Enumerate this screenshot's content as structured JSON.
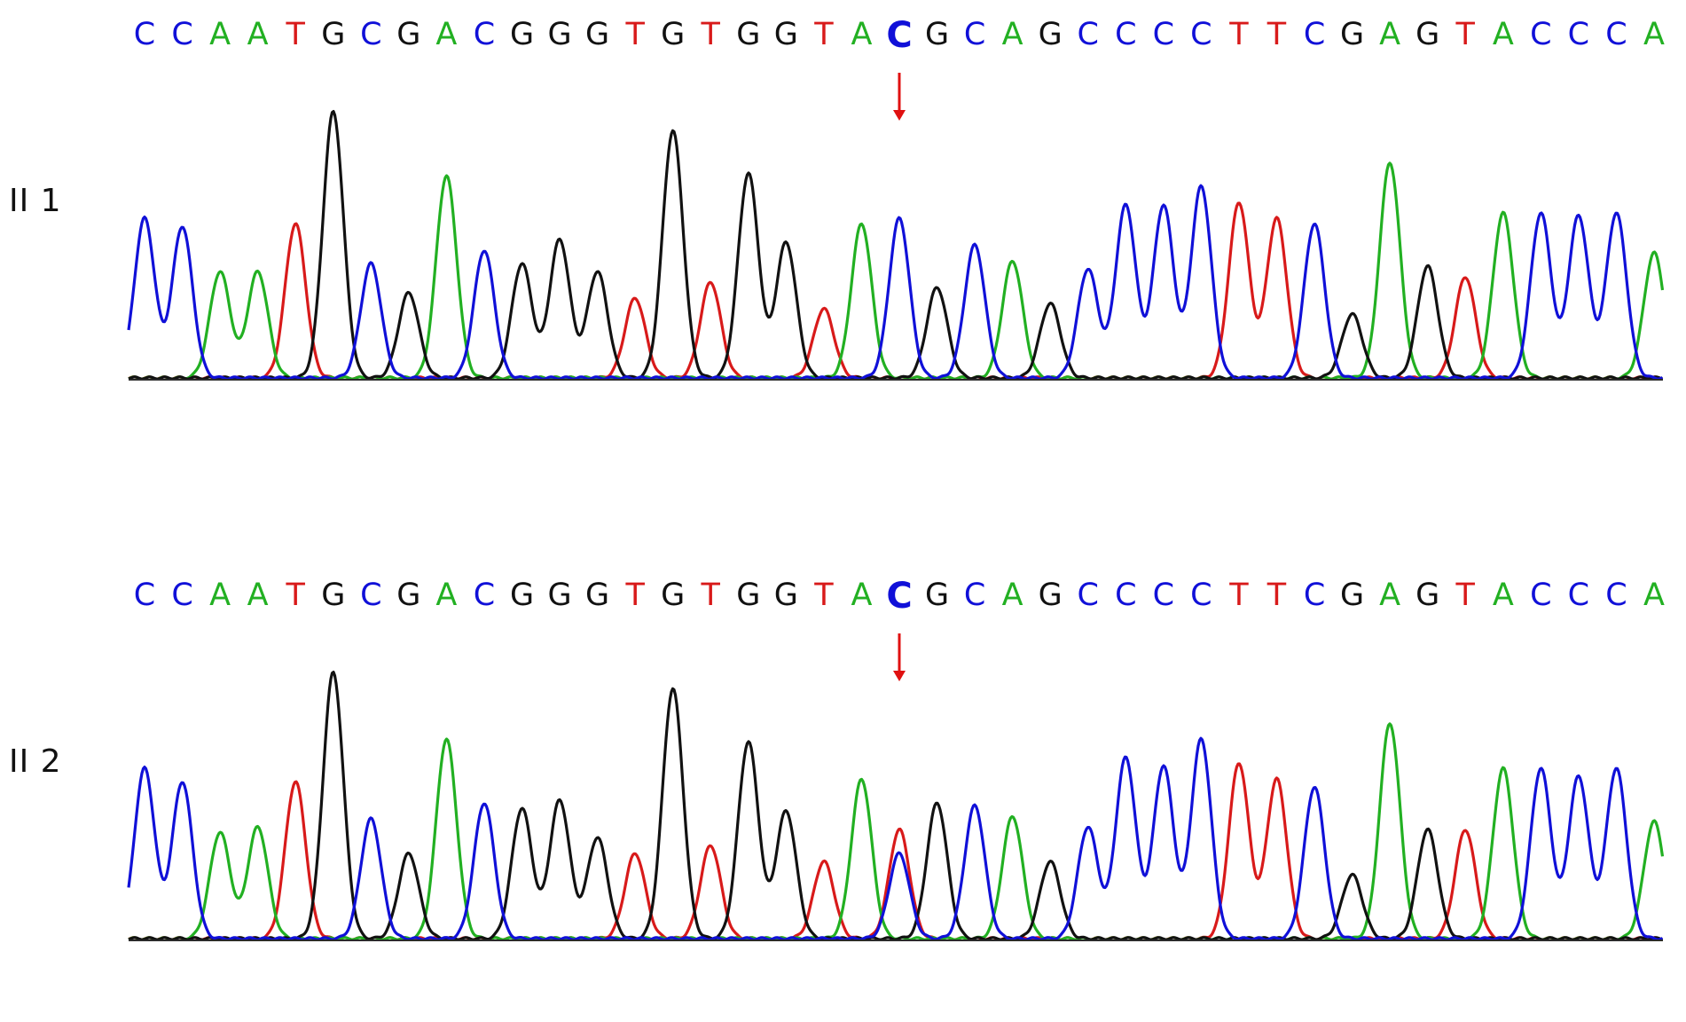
{
  "colors": {
    "A": "#22b022",
    "C": "#1010d8",
    "G": "#111111",
    "T": "#d81a1a",
    "arrow": "#e01010",
    "baseline": "#2a2a2a"
  },
  "panels": [
    {
      "id": "top",
      "label": "II 1"
    },
    {
      "id": "bottom",
      "label": "II 2"
    }
  ],
  "chart_data": [
    {
      "type": "line",
      "sample": "II 1",
      "sequence": "CCAATGCGACGGGTGTGGTACGCAGCCCCTTCGAGTACCCA",
      "highlight_index": 20,
      "highlight_base": "C",
      "peak_heights": [
        0.6,
        0.57,
        0.4,
        0.4,
        0.58,
        1.0,
        0.43,
        0.32,
        0.76,
        0.48,
        0.43,
        0.52,
        0.4,
        0.3,
        0.93,
        0.36,
        0.77,
        0.51,
        0.26,
        0.58,
        0.6,
        0.34,
        0.5,
        0.44,
        0.28,
        0.41,
        0.65,
        0.65,
        0.72,
        0.66,
        0.6,
        0.58,
        0.24,
        0.81,
        0.42,
        0.38,
        0.62,
        0.62,
        0.61,
        0.62,
        0.47
      ],
      "secondary_peaks": []
    },
    {
      "type": "line",
      "sample": "II 2",
      "sequence": "CCAATGCGACGGGTGTGGTACGCAGCCCCTTCGAGTACCCA",
      "highlight_index": 20,
      "highlight_base": "C",
      "peak_heights": [
        0.64,
        0.59,
        0.4,
        0.42,
        0.59,
        1.0,
        0.45,
        0.32,
        0.75,
        0.51,
        0.49,
        0.52,
        0.38,
        0.32,
        0.94,
        0.35,
        0.74,
        0.48,
        0.29,
        0.6,
        0.32,
        0.51,
        0.5,
        0.46,
        0.29,
        0.42,
        0.68,
        0.65,
        0.75,
        0.66,
        0.6,
        0.57,
        0.24,
        0.81,
        0.41,
        0.41,
        0.64,
        0.64,
        0.61,
        0.64,
        0.44
      ],
      "secondary_peaks": [
        {
          "index": 20,
          "base": "T",
          "height": 0.41
        }
      ]
    }
  ]
}
